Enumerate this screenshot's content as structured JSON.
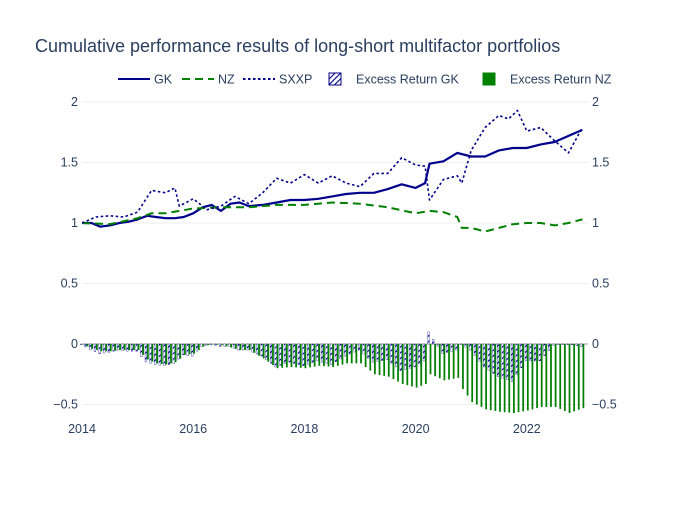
{
  "chart_data": {
    "type": "line",
    "title": "Cumulative performance results of long-short multifactor portfolios",
    "xlim": [
      2014,
      2023.1
    ],
    "ylim": [
      -0.62,
      2.05
    ],
    "x_ticks": [
      {
        "value": 2014,
        "label": "2014"
      },
      {
        "value": 2016,
        "label": "2016"
      },
      {
        "value": 2018,
        "label": "2018"
      },
      {
        "value": 2020,
        "label": "2020"
      },
      {
        "value": 2022,
        "label": "2022"
      }
    ],
    "y_ticks": [
      {
        "value": 2,
        "label": "2"
      },
      {
        "value": 1.5,
        "label": "1.5"
      },
      {
        "value": 1,
        "label": "1"
      },
      {
        "value": 0.5,
        "label": "0.5"
      },
      {
        "value": 0,
        "label": "0"
      },
      {
        "value": -0.5,
        "label": "−0.5"
      }
    ],
    "grid": true,
    "legend_position": "top",
    "colors": {
      "gk": "#00008b",
      "nz": "#008000",
      "sxxp": "#00008b",
      "excess_gk": "#00008b",
      "excess_nz": "#008000",
      "title": "#2a3f5f",
      "tick": "#2a3f5f",
      "grid": "#eeeeee",
      "zero": "#444444"
    },
    "series": [
      {
        "name": "GK",
        "style": "solid",
        "points": [
          [
            2014.0,
            1.0
          ],
          [
            2014.17,
            1.0
          ],
          [
            2014.33,
            0.97
          ],
          [
            2014.5,
            0.98
          ],
          [
            2014.67,
            1.0
          ],
          [
            2014.83,
            1.01
          ],
          [
            2015.0,
            1.03
          ],
          [
            2015.17,
            1.06
          ],
          [
            2015.33,
            1.05
          ],
          [
            2015.5,
            1.04
          ],
          [
            2015.67,
            1.04
          ],
          [
            2015.83,
            1.05
          ],
          [
            2016.0,
            1.08
          ],
          [
            2016.17,
            1.13
          ],
          [
            2016.33,
            1.15
          ],
          [
            2016.5,
            1.1
          ],
          [
            2016.67,
            1.16
          ],
          [
            2016.83,
            1.17
          ],
          [
            2017.0,
            1.14
          ],
          [
            2017.25,
            1.15
          ],
          [
            2017.5,
            1.17
          ],
          [
            2017.75,
            1.19
          ],
          [
            2018.0,
            1.19
          ],
          [
            2018.25,
            1.2
          ],
          [
            2018.5,
            1.22
          ],
          [
            2018.75,
            1.24
          ],
          [
            2019.0,
            1.25
          ],
          [
            2019.25,
            1.25
          ],
          [
            2019.5,
            1.28
          ],
          [
            2019.75,
            1.32
          ],
          [
            2020.0,
            1.29
          ],
          [
            2020.17,
            1.33
          ],
          [
            2020.25,
            1.49
          ],
          [
            2020.5,
            1.51
          ],
          [
            2020.75,
            1.58
          ],
          [
            2021.0,
            1.55
          ],
          [
            2021.25,
            1.55
          ],
          [
            2021.5,
            1.6
          ],
          [
            2021.75,
            1.62
          ],
          [
            2022.0,
            1.62
          ],
          [
            2022.25,
            1.65
          ],
          [
            2022.5,
            1.67
          ],
          [
            2022.75,
            1.72
          ],
          [
            2023.0,
            1.77
          ]
        ]
      },
      {
        "name": "NZ",
        "style": "dash",
        "points": [
          [
            2014.0,
            1.0
          ],
          [
            2014.5,
            0.99
          ],
          [
            2015.0,
            1.04
          ],
          [
            2015.25,
            1.08
          ],
          [
            2015.5,
            1.08
          ],
          [
            2016.0,
            1.12
          ],
          [
            2016.5,
            1.13
          ],
          [
            2017.0,
            1.13
          ],
          [
            2017.5,
            1.15
          ],
          [
            2018.0,
            1.15
          ],
          [
            2018.5,
            1.17
          ],
          [
            2019.0,
            1.16
          ],
          [
            2019.5,
            1.13
          ],
          [
            2020.0,
            1.08
          ],
          [
            2020.25,
            1.1
          ],
          [
            2020.5,
            1.09
          ],
          [
            2020.75,
            1.05
          ],
          [
            2020.83,
            0.96
          ],
          [
            2021.0,
            0.96
          ],
          [
            2021.25,
            0.93
          ],
          [
            2021.5,
            0.96
          ],
          [
            2021.75,
            0.99
          ],
          [
            2022.0,
            1.0
          ],
          [
            2022.25,
            1.0
          ],
          [
            2022.5,
            0.98
          ],
          [
            2022.75,
            1.0
          ],
          [
            2023.0,
            1.03
          ]
        ]
      },
      {
        "name": "SXXP",
        "style": "dot",
        "points": [
          [
            2014.0,
            1.0
          ],
          [
            2014.25,
            1.05
          ],
          [
            2014.5,
            1.06
          ],
          [
            2014.75,
            1.05
          ],
          [
            2015.0,
            1.09
          ],
          [
            2015.25,
            1.27
          ],
          [
            2015.5,
            1.25
          ],
          [
            2015.67,
            1.29
          ],
          [
            2015.75,
            1.14
          ],
          [
            2016.0,
            1.2
          ],
          [
            2016.25,
            1.11
          ],
          [
            2016.5,
            1.14
          ],
          [
            2016.75,
            1.22
          ],
          [
            2017.0,
            1.16
          ],
          [
            2017.25,
            1.25
          ],
          [
            2017.5,
            1.37
          ],
          [
            2017.75,
            1.33
          ],
          [
            2018.0,
            1.4
          ],
          [
            2018.25,
            1.33
          ],
          [
            2018.5,
            1.39
          ],
          [
            2018.75,
            1.33
          ],
          [
            2019.0,
            1.3
          ],
          [
            2019.25,
            1.41
          ],
          [
            2019.5,
            1.41
          ],
          [
            2019.75,
            1.54
          ],
          [
            2020.0,
            1.48
          ],
          [
            2020.17,
            1.47
          ],
          [
            2020.25,
            1.19
          ],
          [
            2020.5,
            1.36
          ],
          [
            2020.75,
            1.39
          ],
          [
            2020.83,
            1.33
          ],
          [
            2021.0,
            1.6
          ],
          [
            2021.25,
            1.79
          ],
          [
            2021.5,
            1.89
          ],
          [
            2021.67,
            1.86
          ],
          [
            2021.83,
            1.93
          ],
          [
            2022.0,
            1.76
          ],
          [
            2022.25,
            1.79
          ],
          [
            2022.5,
            1.68
          ],
          [
            2022.75,
            1.58
          ],
          [
            2023.0,
            1.79
          ]
        ]
      }
    ],
    "bar_series": [
      {
        "name": "Excess Return GK",
        "style": "hatched",
        "points": [
          [
            2014.0,
            0.0
          ],
          [
            2014.17,
            -0.05
          ],
          [
            2014.33,
            -0.08
          ],
          [
            2014.5,
            -0.07
          ],
          [
            2014.67,
            -0.05
          ],
          [
            2014.83,
            -0.06
          ],
          [
            2015.0,
            -0.06
          ],
          [
            2015.17,
            -0.15
          ],
          [
            2015.33,
            -0.17
          ],
          [
            2015.5,
            -0.18
          ],
          [
            2015.67,
            -0.16
          ],
          [
            2015.83,
            -0.09
          ],
          [
            2016.0,
            -0.1
          ],
          [
            2016.17,
            -0.02
          ],
          [
            2016.33,
            0.0
          ],
          [
            2016.5,
            -0.02
          ],
          [
            2016.67,
            -0.02
          ],
          [
            2016.83,
            -0.05
          ],
          [
            2017.0,
            -0.05
          ],
          [
            2017.25,
            -0.1
          ],
          [
            2017.5,
            -0.19
          ],
          [
            2017.75,
            -0.15
          ],
          [
            2018.0,
            -0.18
          ],
          [
            2018.25,
            -0.14
          ],
          [
            2018.5,
            -0.17
          ],
          [
            2018.75,
            -0.1
          ],
          [
            2019.0,
            -0.05
          ],
          [
            2019.25,
            -0.15
          ],
          [
            2019.5,
            -0.13
          ],
          [
            2019.75,
            -0.22
          ],
          [
            2020.0,
            -0.19
          ],
          [
            2020.17,
            -0.14
          ],
          [
            2020.25,
            0.1
          ],
          [
            2020.5,
            -0.08
          ],
          [
            2020.75,
            -0.05
          ],
          [
            2020.83,
            0.0
          ],
          [
            2021.0,
            -0.05
          ],
          [
            2021.25,
            -0.19
          ],
          [
            2021.5,
            -0.27
          ],
          [
            2021.75,
            -0.31
          ],
          [
            2022.0,
            -0.14
          ],
          [
            2022.25,
            -0.14
          ],
          [
            2022.5,
            -0.01
          ],
          [
            2022.75,
            0.0
          ],
          [
            2023.0,
            -0.02
          ]
        ]
      },
      {
        "name": "Excess Return NZ",
        "style": "solid",
        "points": [
          [
            2014.0,
            0.0
          ],
          [
            2014.17,
            -0.04
          ],
          [
            2014.33,
            -0.06
          ],
          [
            2014.5,
            -0.06
          ],
          [
            2014.67,
            -0.05
          ],
          [
            2014.83,
            -0.05
          ],
          [
            2015.0,
            -0.05
          ],
          [
            2015.17,
            -0.13
          ],
          [
            2015.33,
            -0.16
          ],
          [
            2015.5,
            -0.17
          ],
          [
            2015.67,
            -0.15
          ],
          [
            2015.83,
            -0.09
          ],
          [
            2016.0,
            -0.08
          ],
          [
            2016.17,
            -0.02
          ],
          [
            2016.33,
            0.0
          ],
          [
            2016.5,
            -0.01
          ],
          [
            2016.67,
            -0.03
          ],
          [
            2016.83,
            -0.05
          ],
          [
            2017.0,
            -0.05
          ],
          [
            2017.25,
            -0.12
          ],
          [
            2017.5,
            -0.2
          ],
          [
            2017.75,
            -0.19
          ],
          [
            2018.0,
            -0.2
          ],
          [
            2018.25,
            -0.18
          ],
          [
            2018.5,
            -0.19
          ],
          [
            2018.75,
            -0.16
          ],
          [
            2019.0,
            -0.16
          ],
          [
            2019.25,
            -0.25
          ],
          [
            2019.5,
            -0.27
          ],
          [
            2019.75,
            -0.33
          ],
          [
            2020.0,
            -0.36
          ],
          [
            2020.17,
            -0.33
          ],
          [
            2020.25,
            -0.25
          ],
          [
            2020.5,
            -0.3
          ],
          [
            2020.75,
            -0.28
          ],
          [
            2020.83,
            -0.37
          ],
          [
            2021.0,
            -0.48
          ],
          [
            2021.25,
            -0.54
          ],
          [
            2021.5,
            -0.56
          ],
          [
            2021.75,
            -0.57
          ],
          [
            2022.0,
            -0.55
          ],
          [
            2022.25,
            -0.52
          ],
          [
            2022.5,
            -0.52
          ],
          [
            2022.75,
            -0.57
          ],
          [
            2023.0,
            -0.53
          ]
        ]
      }
    ]
  }
}
